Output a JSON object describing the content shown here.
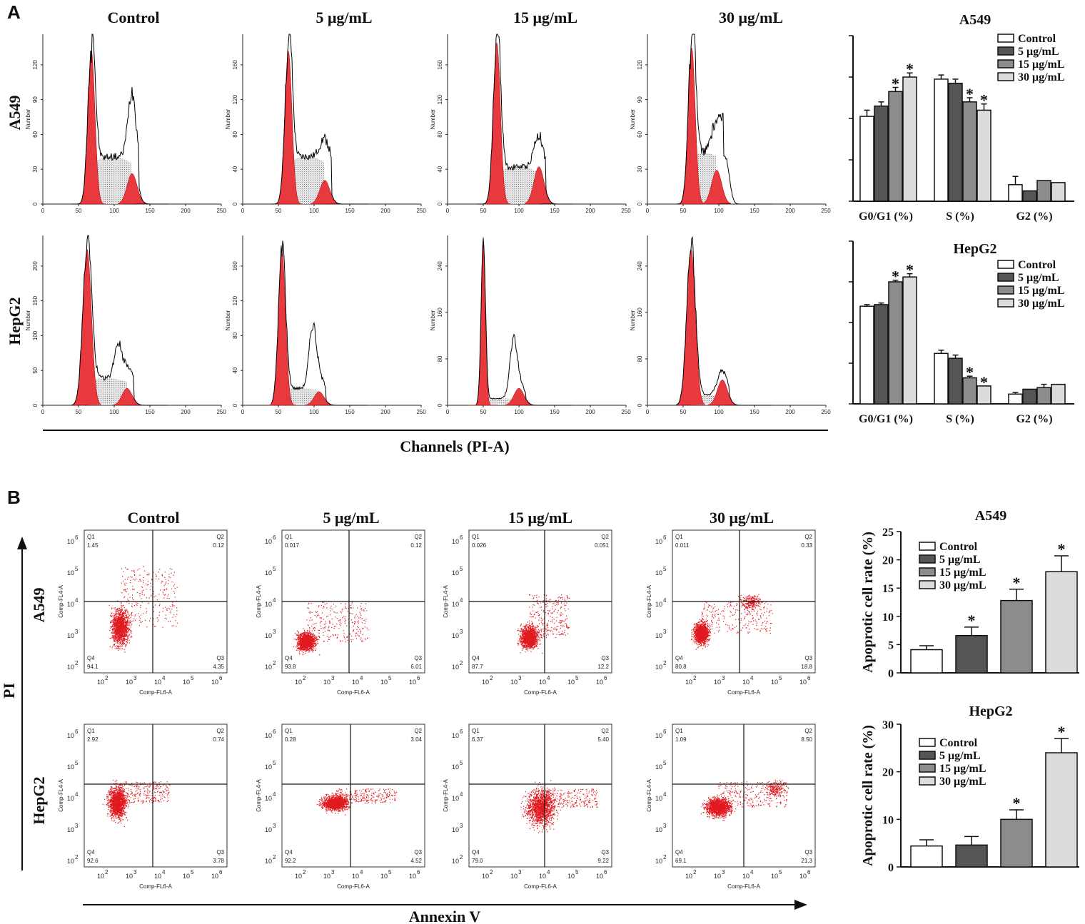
{
  "panel_labels": [
    "A",
    "B"
  ],
  "columns": [
    "Control",
    "5 μg/mL",
    "15 μg/mL",
    "30 μg/mL"
  ],
  "rows": [
    "A549",
    "HepG2"
  ],
  "panel_a": {
    "x_axis_title": "Channels (PI-A)",
    "hist_ylabel": "Number",
    "hist_xticks": [
      "0",
      "50",
      "100",
      "150",
      "200",
      "250"
    ],
    "hist_yticks": {
      "A549": [
        [
          "0",
          "30",
          "60",
          "90",
          "120"
        ],
        [
          "0",
          "40",
          "80",
          "120",
          "160"
        ],
        [
          "0",
          "40",
          "80",
          "120",
          "160"
        ],
        [
          "0",
          "30",
          "60",
          "90",
          "120"
        ]
      ],
      "HepG2": [
        [
          "0",
          "50",
          "100",
          "150",
          "200"
        ],
        [
          "0",
          "40",
          "80",
          "120",
          "160"
        ],
        [
          "0",
          "80",
          "160",
          "240"
        ],
        [
          "0",
          "80",
          "160",
          "240"
        ]
      ]
    }
  },
  "panel_b": {
    "x_axis_title": "Annexin V",
    "y_axis_title": "PI",
    "dot_xlabel": "Comp-FL6-A",
    "dot_ylabel": "Comp-FL4-A",
    "quadrant_names": [
      "Q1",
      "Q2",
      "Q3",
      "Q4"
    ],
    "quadrants": {
      "A549": [
        [
          "1.45",
          "0.12",
          "4.35",
          "94.1"
        ],
        [
          "0.017",
          "0.12",
          "6.01",
          "93.8"
        ],
        [
          "0.026",
          "0.051",
          "12.2",
          "87.7"
        ],
        [
          "0.011",
          "0.33",
          "18.8",
          "80.8"
        ]
      ],
      "HepG2": [
        [
          "2.92",
          "0.74",
          "3.78",
          "92.6"
        ],
        [
          "0.28",
          "3.04",
          "4.52",
          "92.2"
        ],
        [
          "6.37",
          "5.40",
          "9.22",
          "79.0"
        ],
        [
          "1.09",
          "8.50",
          "21.3",
          "69.1"
        ]
      ]
    }
  },
  "chart_data": [
    {
      "type": "bar",
      "title": "A549",
      "categories": [
        "G0/G1 (%)",
        "S (%)",
        "G2 (%)"
      ],
      "ylim": [
        0,
        80
      ],
      "series": [
        {
          "name": "Control",
          "values": [
            41,
            59,
            8
          ],
          "errors": [
            3,
            2,
            4
          ]
        },
        {
          "name": "5 μg/mL",
          "values": [
            46,
            57,
            5
          ],
          "errors": [
            2,
            2,
            0
          ]
        },
        {
          "name": "15 μg/mL",
          "values": [
            53,
            48,
            10
          ],
          "errors": [
            2,
            2,
            0
          ]
        },
        {
          "name": "30 μg/mL",
          "values": [
            60,
            44,
            9
          ],
          "errors": [
            2,
            3,
            0
          ]
        }
      ],
      "significant": [
        [
          false,
          false,
          false
        ],
        [
          false,
          false,
          false
        ],
        [
          true,
          true,
          false
        ],
        [
          true,
          true,
          false
        ]
      ],
      "star": "*"
    },
    {
      "type": "bar",
      "title": "HepG2",
      "categories": [
        "G0/G1 (%)",
        "S (%)",
        "G2 (%)"
      ],
      "ylim": [
        0,
        100
      ],
      "series": [
        {
          "name": "Control",
          "values": [
            60,
            31,
            6
          ],
          "errors": [
            1,
            2,
            1
          ]
        },
        {
          "name": "5 μg/mL",
          "values": [
            61,
            28,
            9
          ],
          "errors": [
            1,
            2,
            0
          ]
        },
        {
          "name": "15 μg/mL",
          "values": [
            75,
            16,
            10
          ],
          "errors": [
            1,
            1,
            2
          ]
        },
        {
          "name": "30 μg/mL",
          "values": [
            78,
            11,
            12
          ],
          "errors": [
            2,
            0,
            0
          ]
        }
      ],
      "significant": [
        [
          false,
          false,
          false
        ],
        [
          false,
          false,
          false
        ],
        [
          true,
          true,
          false
        ],
        [
          true,
          true,
          false
        ]
      ],
      "star": "*"
    },
    {
      "type": "bar",
      "title": "A549",
      "ylabel": "Apoprotic cell rate (%)",
      "categories": [
        "Control",
        "5 μg/mL",
        "15 μg/mL",
        "30 μg/mL"
      ],
      "values": [
        4.1,
        6.6,
        12.8,
        17.9
      ],
      "errors": [
        0.7,
        1.5,
        2.0,
        2.8
      ],
      "yticks": [
        "0",
        "5",
        "10",
        "15",
        "20",
        "25"
      ],
      "ylim": [
        0,
        25
      ],
      "significant": [
        false,
        true,
        true,
        true
      ],
      "star": "*"
    },
    {
      "type": "bar",
      "title": "HepG2",
      "ylabel": "Apoprotic cell rate (%)",
      "categories": [
        "Control",
        "5 μg/mL",
        "15 μg/mL",
        "30 μg/mL"
      ],
      "values": [
        4.4,
        4.6,
        10.0,
        24.0
      ],
      "errors": [
        1.3,
        1.8,
        2.0,
        3.0
      ],
      "yticks": [
        "0",
        "10",
        "20",
        "30"
      ],
      "ylim": [
        0,
        30
      ],
      "significant": [
        false,
        false,
        true,
        true
      ],
      "star": "*"
    }
  ]
}
